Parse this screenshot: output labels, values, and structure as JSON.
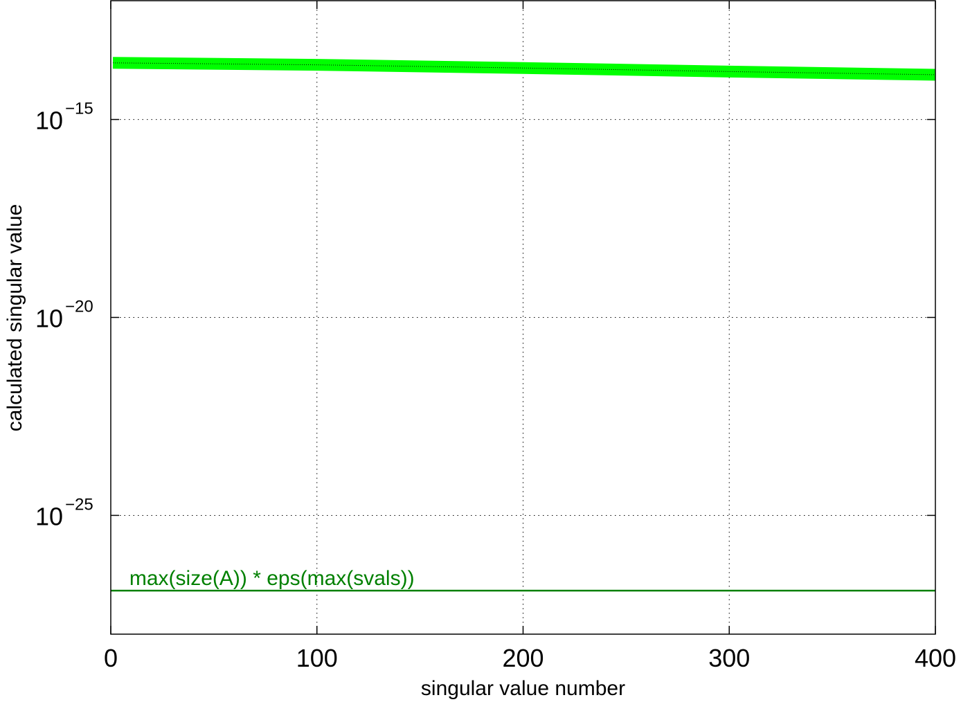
{
  "chart_data": {
    "type": "line",
    "x_scale": "linear",
    "y_scale": "log",
    "xlabel": "singular value number",
    "ylabel": "calculated singular value",
    "xlim": [
      0,
      400
    ],
    "ylim_log10": [
      -28,
      -12
    ],
    "xticks": [
      0,
      100,
      200,
      300,
      400
    ],
    "xtick_labels": [
      "0",
      "100",
      "200",
      "300",
      "400"
    ],
    "yticks_log10": [
      -15,
      -20,
      -25
    ],
    "ytick_labels": [
      {
        "base": "10",
        "exp": "−15"
      },
      {
        "base": "10",
        "exp": "−20"
      },
      {
        "base": "10",
        "exp": "−25"
      }
    ],
    "grid": true,
    "grid_style": "dotted",
    "series": [
      {
        "color": "#00ff00",
        "style": "thick",
        "x": [
          1,
          100,
          200,
          300,
          400
        ],
        "y_log10": [
          -13.57,
          -13.62,
          -13.7,
          -13.79,
          -13.87
        ]
      },
      {
        "color": "#000000",
        "style": "dotted-thin",
        "x": [
          1,
          100,
          200,
          300,
          400
        ],
        "y_log10": [
          -13.57,
          -13.62,
          -13.7,
          -13.79,
          -13.87
        ]
      },
      {
        "color": "#008000",
        "style": "solid",
        "x": [
          0,
          400
        ],
        "y_log10": [
          -26.9,
          -26.9
        ]
      }
    ],
    "annotations": [
      {
        "text": "max(size(A)) * eps(max(svals))",
        "x": 5,
        "y_log10": -26.9,
        "color": "#008000"
      }
    ]
  }
}
